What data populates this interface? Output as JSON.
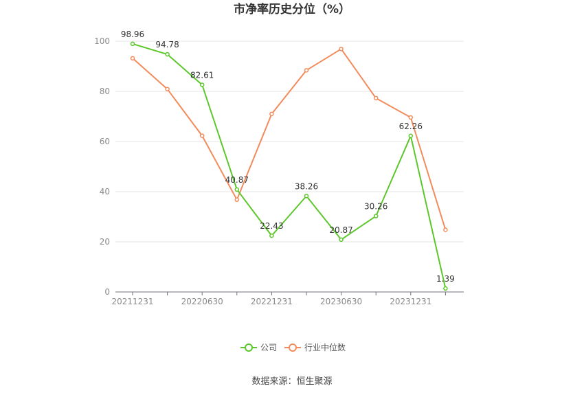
{
  "chart_data": {
    "type": "line",
    "title": "市净率历史分位（%）",
    "source": "数据来源：恒生聚源",
    "x": [
      "20211231",
      "20220331",
      "20220630",
      "20220930",
      "20221231",
      "20230331",
      "20230630",
      "20230930",
      "20231231",
      "20240331"
    ],
    "x_tick_labels": [
      "20211231",
      "20220630",
      "20221231",
      "20230630",
      "20231231"
    ],
    "y_ticks": [
      0,
      20,
      40,
      60,
      80,
      100
    ],
    "ylim": [
      0,
      100
    ],
    "grid": true,
    "legend_position": "bottom",
    "series": [
      {
        "name": "公司",
        "color": "#5cc72a",
        "values": [
          98.96,
          94.78,
          82.61,
          40.87,
          22.43,
          38.26,
          20.87,
          30.26,
          62.26,
          1.39
        ],
        "labels": [
          "98.96",
          "94.78",
          "82.61",
          "40.87",
          "22.43",
          "38.26",
          "20.87",
          "30.26",
          "62.26",
          "1.39"
        ]
      },
      {
        "name": "行业中位数",
        "color": "#f28b5b",
        "values": [
          93.2,
          80.9,
          62.3,
          36.8,
          71.0,
          88.4,
          96.9,
          77.3,
          69.6,
          24.8
        ]
      }
    ]
  }
}
